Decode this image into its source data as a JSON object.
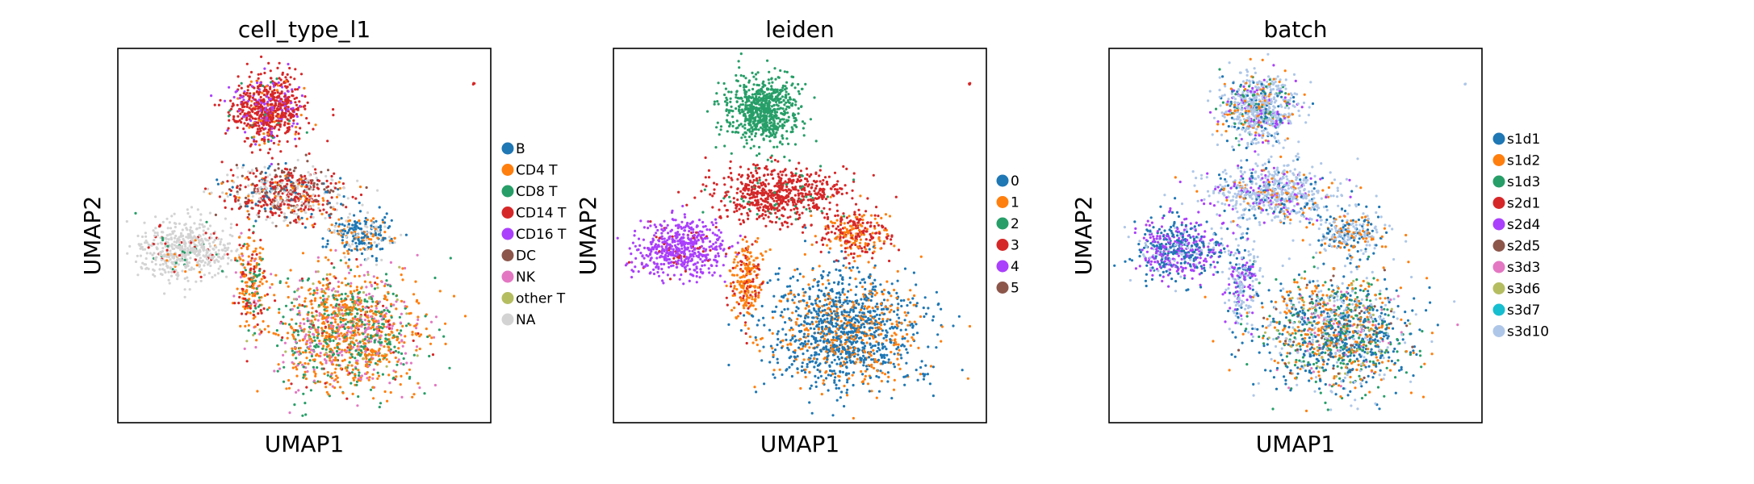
{
  "chart_data": [
    {
      "type": "scatter",
      "title": "cell_type_l1",
      "xlabel": "UMAP1",
      "ylabel": "UMAP2",
      "xticks": [],
      "yticks": [],
      "grid": false,
      "legend": {
        "placement": "right",
        "title": ""
      },
      "categories": [
        "B",
        "CD4 T",
        "CD8 T",
        "CD14 T",
        "CD16 T",
        "DC",
        "NK",
        "other T",
        "NA"
      ],
      "colors": [
        "#1f77b4",
        "#ff7f0e",
        "#279e68",
        "#d62728",
        "#aa40fc",
        "#8c564b",
        "#e377c2",
        "#b5bd61",
        "#d3d3d3"
      ]
    },
    {
      "type": "scatter",
      "title": "leiden",
      "xlabel": "UMAP1",
      "ylabel": "UMAP2",
      "xticks": [],
      "yticks": [],
      "grid": false,
      "legend": {
        "placement": "right",
        "title": ""
      },
      "categories": [
        "0",
        "1",
        "2",
        "3",
        "4",
        "5"
      ],
      "colors": [
        "#1f77b4",
        "#ff7f0e",
        "#279e68",
        "#d62728",
        "#aa40fc",
        "#8c564b"
      ]
    },
    {
      "type": "scatter",
      "title": "batch",
      "xlabel": "UMAP1",
      "ylabel": "UMAP2",
      "xticks": [],
      "yticks": [],
      "grid": false,
      "legend": {
        "placement": "right",
        "title": ""
      },
      "categories": [
        "s1d1",
        "s1d2",
        "s1d3",
        "s2d1",
        "s2d4",
        "s2d5",
        "s3d3",
        "s3d6",
        "s3d7",
        "s3d10"
      ],
      "colors": [
        "#1f77b4",
        "#ff7f0e",
        "#279e68",
        "#d62728",
        "#aa40fc",
        "#8c564b",
        "#e377c2",
        "#b5bd61",
        "#17becf",
        "#aec7e8"
      ]
    }
  ]
}
